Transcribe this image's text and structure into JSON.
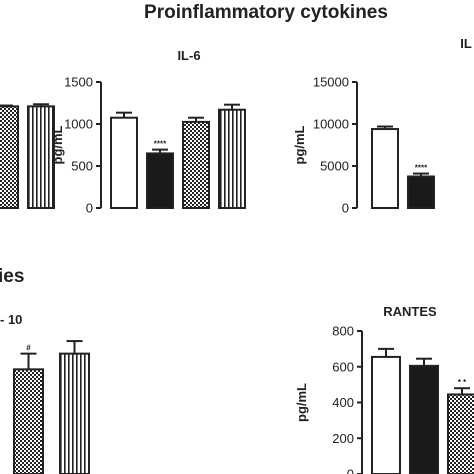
{
  "page_title": "Proinflammatory cytokines",
  "section_fragment": "ies",
  "chart_data": [
    {
      "type": "bar",
      "panel": "left-top-fragment",
      "title": "",
      "categories": [
        "c1",
        "c2"
      ],
      "values": [
        1210,
        1210
      ],
      "errors": [
        10,
        25
      ],
      "patterns": [
        "check",
        "vstripe"
      ],
      "ylim": [
        0,
        1500
      ]
    },
    {
      "type": "bar",
      "panel": "IL-6",
      "title": "IL-6",
      "ylabel": "pg/mL",
      "ylim": [
        0,
        1500
      ],
      "yticks": [
        "0",
        "500",
        "1000",
        "1500"
      ],
      "categories": [
        "c1",
        "c2",
        "c3",
        "c4"
      ],
      "values": [
        1075,
        650,
        1025,
        1170
      ],
      "errors": [
        60,
        45,
        50,
        60
      ],
      "patterns": [
        "white",
        "black",
        "check",
        "vstripe"
      ],
      "annotations": [
        "",
        "****",
        "",
        ""
      ]
    },
    {
      "type": "bar",
      "panel": "right-top",
      "title": "IL",
      "ylabel": "pg/mL",
      "ylim": [
        0,
        15000
      ],
      "yticks": [
        "0",
        "5000",
        "10000",
        "15000"
      ],
      "categories": [
        "c1",
        "c2"
      ],
      "values": [
        9400,
        3750
      ],
      "errors": [
        300,
        350
      ],
      "patterns": [
        "white",
        "black"
      ],
      "annotations": [
        "",
        "****"
      ]
    },
    {
      "type": "bar",
      "panel": "left-bottom-fragment",
      "title": "- 10",
      "categories": [
        "c1",
        "c2"
      ],
      "values": [
        1.0,
        1.15
      ],
      "errors": [
        0.15,
        0.12
      ],
      "patterns": [
        "check",
        "vstripe"
      ],
      "annotations": [
        "#",
        ""
      ],
      "ylim": [
        0,
        1.5
      ]
    },
    {
      "type": "bar",
      "panel": "RANTES",
      "title": "RANTES",
      "ylabel": "pg/mL",
      "ylim": [
        0,
        800
      ],
      "yticks": [
        "0",
        "200",
        "400",
        "600",
        "800"
      ],
      "categories": [
        "c1",
        "c2",
        "c3"
      ],
      "values": [
        655,
        605,
        445
      ],
      "errors": [
        45,
        40,
        35
      ],
      "patterns": [
        "white",
        "black",
        "check"
      ],
      "annotations": [
        "",
        "",
        "* *"
      ]
    }
  ]
}
